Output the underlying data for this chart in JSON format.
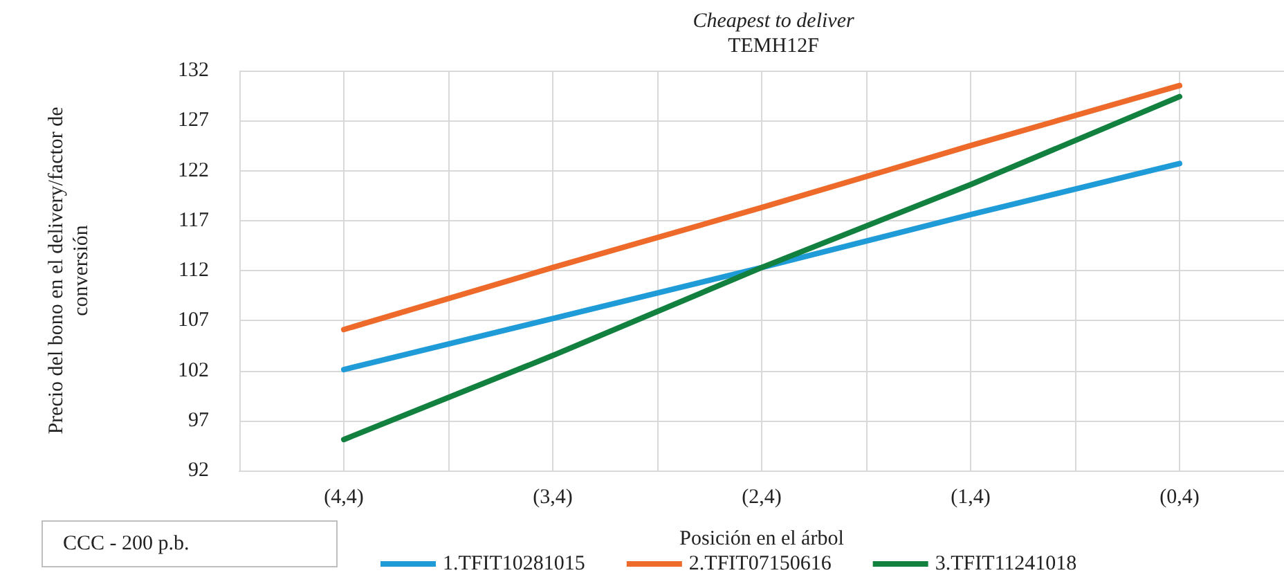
{
  "chart_data": {
    "type": "line",
    "title": "Cheapest to deliver",
    "subtitle": "TEMH12F",
    "xlabel": "Posición en el árbol",
    "ylabel": "Precio del bono en el delivery/factor de conversión",
    "categories": [
      "(4,4)",
      "(3,4)",
      "(2,4)",
      "(1,4)",
      "(0,4)"
    ],
    "series": [
      {
        "name": "1.TFIT10281015",
        "color": "#1f9bd7",
        "values": [
          102.1,
          107.2,
          112.3,
          117.6,
          122.7
        ]
      },
      {
        "name": "2.TFIT07150616",
        "color": "#ee6a2a",
        "values": [
          106.1,
          112.3,
          118.3,
          124.5,
          130.5
        ]
      },
      {
        "name": "3.TFIT11241018",
        "color": "#12803e",
        "values": [
          95.1,
          103.5,
          112.3,
          120.6,
          129.4
        ]
      }
    ],
    "ylim": [
      92,
      132
    ],
    "yticks": [
      92,
      97,
      102,
      107,
      112,
      117,
      122,
      127,
      132
    ],
    "grid": true,
    "legend": "bottom",
    "marker": "none",
    "line_style": "solid",
    "annotations": [
      "CCC - 200 p.b."
    ]
  }
}
